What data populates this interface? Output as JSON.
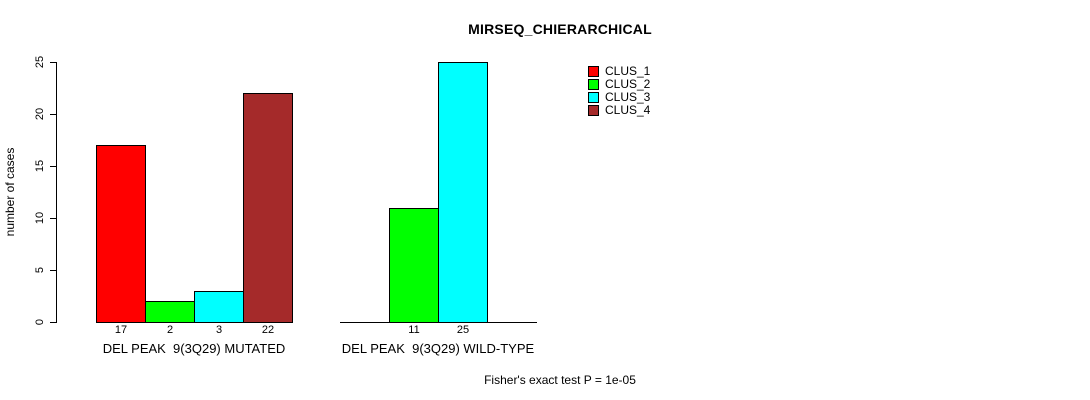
{
  "chart_data": {
    "type": "bar",
    "title": "MIRSEQ_CHIERARCHICAL",
    "ylabel": "number of cases",
    "xlabel": "",
    "ylim": [
      0,
      25
    ],
    "yticks": [
      0,
      5,
      10,
      15,
      20,
      25
    ],
    "grid": false,
    "legend": {
      "position": "top-right",
      "items": [
        {
          "label": "CLUS_1",
          "color": "#FF0000"
        },
        {
          "label": "CLUS_2",
          "color": "#00FF00"
        },
        {
          "label": "CLUS_3",
          "color": "#00FFFF"
        },
        {
          "label": "CLUS_4",
          "color": "#A52A2A"
        }
      ]
    },
    "groups": [
      {
        "label": "DEL PEAK  9(3Q29) MUTATED",
        "values": [
          17,
          2,
          3,
          22
        ]
      },
      {
        "label": "DEL PEAK  9(3Q29) WILD-TYPE",
        "values": [
          0,
          11,
          25,
          0
        ]
      }
    ],
    "bar_value_label_rule": "values shown under bars only when > 0",
    "footnote": "Fisher's exact test P = 1e-05"
  },
  "colors": {
    "background": "#FFFFFF",
    "axis": "#000000",
    "bar_border": "#000000",
    "text": "#000000"
  }
}
